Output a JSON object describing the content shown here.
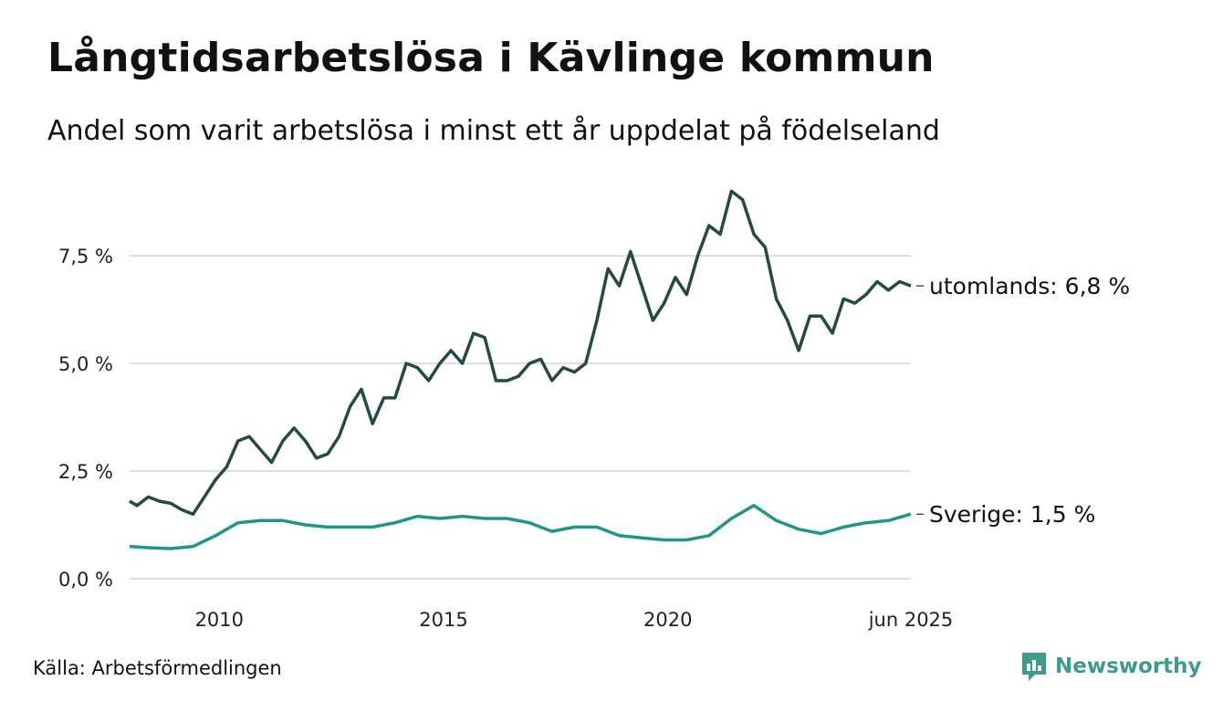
{
  "header": {
    "title": "Långtidsarbetslösa i Kävlinge kommun",
    "subtitle": "Andel som varit arbetslösa i minst ett år uppdelat på födelseland"
  },
  "footer": {
    "source": "Källa: Arbetsförmedlingen",
    "brand": "Newsworthy"
  },
  "colors": {
    "utomlands": "#234a44",
    "sverige": "#1f9688",
    "grid": "#dcdcdc",
    "brand": "#3f9a8e"
  },
  "icons": {
    "brand_logo": "newsworthy-logo-icon"
  },
  "chart_data": {
    "type": "line",
    "title": "Långtidsarbetslösa i Kävlinge kommun",
    "subtitle": "Andel som varit arbetslösa i minst ett år uppdelat på födelseland",
    "xlabel": "",
    "ylabel": "",
    "x_range": [
      "2008-01",
      "2025-06"
    ],
    "ylim": [
      0,
      9.2
    ],
    "y_ticks": [
      0,
      2.5,
      5,
      7.5
    ],
    "y_tick_labels": [
      "0,0 %",
      "2,5 %",
      "5,0 %",
      "7,5 %"
    ],
    "x_ticks": [
      "2010-01",
      "2015-01",
      "2020-01",
      "2025-06"
    ],
    "x_tick_labels": [
      "2010",
      "2015",
      "2020",
      "jun 2025"
    ],
    "grid": true,
    "legend": "end-labels",
    "series": [
      {
        "name": "utomlands",
        "end_label": "utomlands: 6,8 %",
        "points": [
          [
            "2008-01",
            1.8
          ],
          [
            "2008-03",
            1.7
          ],
          [
            "2008-06",
            1.9
          ],
          [
            "2008-09",
            1.8
          ],
          [
            "2008-12",
            1.75
          ],
          [
            "2009-03",
            1.6
          ],
          [
            "2009-06",
            1.5
          ],
          [
            "2009-09",
            1.9
          ],
          [
            "2009-12",
            2.3
          ],
          [
            "2010-03",
            2.6
          ],
          [
            "2010-06",
            3.2
          ],
          [
            "2010-09",
            3.3
          ],
          [
            "2010-12",
            3.0
          ],
          [
            "2011-03",
            2.7
          ],
          [
            "2011-06",
            3.2
          ],
          [
            "2011-09",
            3.5
          ],
          [
            "2011-12",
            3.2
          ],
          [
            "2012-03",
            2.8
          ],
          [
            "2012-06",
            2.9
          ],
          [
            "2012-09",
            3.3
          ],
          [
            "2012-12",
            4.0
          ],
          [
            "2013-03",
            4.4
          ],
          [
            "2013-06",
            3.6
          ],
          [
            "2013-09",
            4.2
          ],
          [
            "2013-12",
            4.2
          ],
          [
            "2014-03",
            5.0
          ],
          [
            "2014-06",
            4.9
          ],
          [
            "2014-09",
            4.6
          ],
          [
            "2014-12",
            5.0
          ],
          [
            "2015-03",
            5.3
          ],
          [
            "2015-06",
            5.0
          ],
          [
            "2015-09",
            5.7
          ],
          [
            "2015-12",
            5.6
          ],
          [
            "2016-03",
            4.6
          ],
          [
            "2016-06",
            4.6
          ],
          [
            "2016-09",
            4.7
          ],
          [
            "2016-12",
            5.0
          ],
          [
            "2017-03",
            5.1
          ],
          [
            "2017-06",
            4.6
          ],
          [
            "2017-09",
            4.9
          ],
          [
            "2017-12",
            4.8
          ],
          [
            "2018-03",
            5.0
          ],
          [
            "2018-06",
            6.0
          ],
          [
            "2018-09",
            7.2
          ],
          [
            "2018-12",
            6.8
          ],
          [
            "2019-03",
            7.6
          ],
          [
            "2019-06",
            6.8
          ],
          [
            "2019-09",
            6.0
          ],
          [
            "2019-12",
            6.4
          ],
          [
            "2020-03",
            7.0
          ],
          [
            "2020-06",
            6.6
          ],
          [
            "2020-09",
            7.5
          ],
          [
            "2020-12",
            8.2
          ],
          [
            "2021-03",
            8.0
          ],
          [
            "2021-06",
            9.0
          ],
          [
            "2021-09",
            8.8
          ],
          [
            "2021-12",
            8.0
          ],
          [
            "2022-03",
            7.7
          ],
          [
            "2022-06",
            6.5
          ],
          [
            "2022-09",
            6.0
          ],
          [
            "2022-12",
            5.3
          ],
          [
            "2023-03",
            6.1
          ],
          [
            "2023-06",
            6.1
          ],
          [
            "2023-09",
            5.7
          ],
          [
            "2023-12",
            6.5
          ],
          [
            "2024-03",
            6.4
          ],
          [
            "2024-06",
            6.6
          ],
          [
            "2024-09",
            6.9
          ],
          [
            "2024-12",
            6.7
          ],
          [
            "2025-03",
            6.9
          ],
          [
            "2025-06",
            6.8
          ]
        ]
      },
      {
        "name": "Sverige",
        "end_label": "Sverige: 1,5 %",
        "points": [
          [
            "2008-01",
            0.75
          ],
          [
            "2008-06",
            0.72
          ],
          [
            "2008-12",
            0.7
          ],
          [
            "2009-06",
            0.75
          ],
          [
            "2009-12",
            1.0
          ],
          [
            "2010-06",
            1.3
          ],
          [
            "2010-12",
            1.35
          ],
          [
            "2011-06",
            1.35
          ],
          [
            "2011-12",
            1.25
          ],
          [
            "2012-06",
            1.2
          ],
          [
            "2012-12",
            1.2
          ],
          [
            "2013-06",
            1.2
          ],
          [
            "2013-12",
            1.3
          ],
          [
            "2014-06",
            1.45
          ],
          [
            "2014-12",
            1.4
          ],
          [
            "2015-06",
            1.45
          ],
          [
            "2015-12",
            1.4
          ],
          [
            "2016-06",
            1.4
          ],
          [
            "2016-12",
            1.3
          ],
          [
            "2017-06",
            1.1
          ],
          [
            "2017-12",
            1.2
          ],
          [
            "2018-06",
            1.2
          ],
          [
            "2018-12",
            1.0
          ],
          [
            "2019-06",
            0.95
          ],
          [
            "2019-12",
            0.9
          ],
          [
            "2020-06",
            0.9
          ],
          [
            "2020-12",
            1.0
          ],
          [
            "2021-06",
            1.4
          ],
          [
            "2021-12",
            1.7
          ],
          [
            "2022-06",
            1.35
          ],
          [
            "2022-12",
            1.15
          ],
          [
            "2023-06",
            1.05
          ],
          [
            "2023-12",
            1.2
          ],
          [
            "2024-06",
            1.3
          ],
          [
            "2024-12",
            1.35
          ],
          [
            "2025-06",
            1.5
          ]
        ]
      }
    ]
  }
}
